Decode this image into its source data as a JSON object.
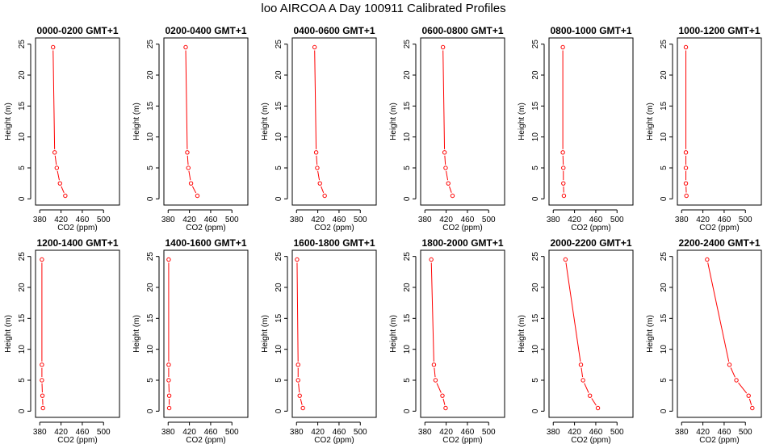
{
  "title": "loo AIRCOA A  Day 100911  Calibrated Profiles",
  "colors": {
    "line": "#ff0000",
    "axis": "#000000"
  },
  "chart_data": {
    "type": "line",
    "xlabel": "CO2 (ppm)",
    "ylabel": "Height (m)",
    "xlim": [
      372,
      530
    ],
    "ylim": [
      -1,
      26
    ],
    "xticks": [
      380,
      420,
      460,
      500
    ],
    "yticks": [
      0,
      5,
      10,
      15,
      20,
      25
    ],
    "x_tick_labels": [
      "380",
      "420",
      "460",
      "500"
    ],
    "y_tick_labels": [
      "0",
      "5",
      "10",
      "15",
      "20",
      "25"
    ],
    "heights": [
      0.5,
      2.5,
      5,
      7.5,
      24.5
    ],
    "panels": [
      {
        "title": "0000-0200 GMT+1",
        "co2": [
          428,
          418,
          412,
          408,
          405
        ]
      },
      {
        "title": "0200-0400 GMT+1",
        "co2": [
          435,
          423,
          418,
          416,
          413
        ]
      },
      {
        "title": "0400-0600 GMT+1",
        "co2": [
          433,
          424,
          419,
          417,
          414
        ]
      },
      {
        "title": "0600-0800 GMT+1",
        "co2": [
          432,
          424,
          419,
          417,
          414
        ]
      },
      {
        "title": "0800-1000 GMT+1",
        "co2": [
          400,
          399,
          399,
          398,
          398
        ]
      },
      {
        "title": "1000-1200 GMT+1",
        "co2": [
          389,
          388,
          388,
          388,
          388
        ]
      },
      {
        "title": "1200-1400 GMT+1",
        "co2": [
          386,
          385,
          384,
          384,
          384
        ]
      },
      {
        "title": "1400-1600 GMT+1",
        "co2": [
          382,
          382,
          381,
          381,
          381
        ]
      },
      {
        "title": "1600-1800 GMT+1",
        "co2": [
          392,
          386,
          383,
          383,
          381
        ]
      },
      {
        "title": "1800-2000 GMT+1",
        "co2": [
          419,
          413,
          400,
          397,
          392
        ]
      },
      {
        "title": "2000-2200 GMT+1",
        "co2": [
          464,
          449,
          436,
          432,
          403
        ]
      },
      {
        "title": "2200-2400 GMT+1",
        "co2": [
          513,
          506,
          483,
          470,
          428
        ]
      }
    ]
  }
}
